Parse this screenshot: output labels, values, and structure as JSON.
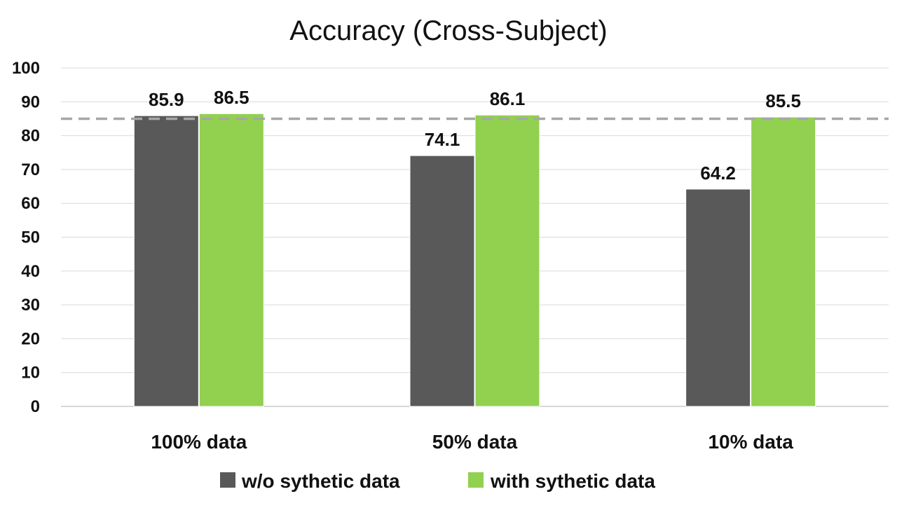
{
  "chart_data": {
    "type": "bar",
    "title": "Accuracy (Cross-Subject)",
    "xlabel": "",
    "ylabel": "",
    "ylim": [
      0,
      100
    ],
    "yticks": [
      0,
      10,
      20,
      30,
      40,
      50,
      60,
      70,
      80,
      90,
      100
    ],
    "grid": true,
    "legend_position": "bottom",
    "categories": [
      "100% data",
      "50% data",
      "10% data"
    ],
    "series": [
      {
        "name": "w/o sythetic data",
        "color": "#595959",
        "values": [
          85.9,
          74.1,
          64.2
        ],
        "labels": [
          "85.9",
          "74.1",
          "64.2"
        ]
      },
      {
        "name": "with sythetic data",
        "color": "#92d050",
        "values": [
          86.5,
          86.1,
          85.5
        ],
        "labels": [
          "86.5",
          "86.1",
          "85.5"
        ]
      }
    ],
    "reference_line": {
      "value": 85,
      "style": "dashed",
      "color": "#a6a6a6"
    }
  }
}
